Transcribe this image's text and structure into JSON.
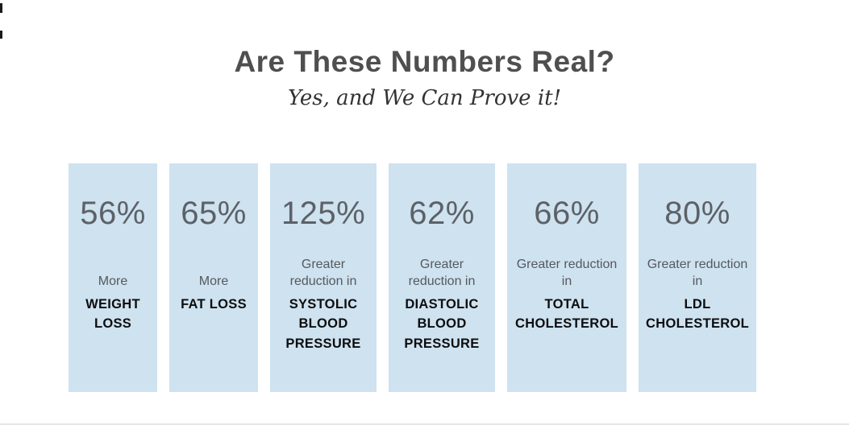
{
  "header": {
    "title": "Are These Numbers Real?",
    "subtitle": "Yes, and We Can Prove it!"
  },
  "cards": [
    {
      "percent": "56%",
      "qualifier": "More",
      "label": "WEIGHT LOSS"
    },
    {
      "percent": "65%",
      "qualifier": "More",
      "label": "FAT LOSS"
    },
    {
      "percent": "125%",
      "qualifier": "Greater reduction in",
      "label": "SYSTOLIC BLOOD PRESSURE"
    },
    {
      "percent": "62%",
      "qualifier": "Greater reduction in",
      "label": "DIASTOLIC BLOOD PRESSURE"
    },
    {
      "percent": "66%",
      "qualifier": "Greater reduction in",
      "label": "TOTAL CHOLESTEROL"
    },
    {
      "percent": "80%",
      "qualifier": "Greater reduction in",
      "label": "LDL CHOLESTEROL"
    }
  ],
  "colors": {
    "card_background": "#cee2f0",
    "percent_text": "#5d6167",
    "title_text": "#4f4f4f",
    "label_text": "#0d0d0d"
  }
}
